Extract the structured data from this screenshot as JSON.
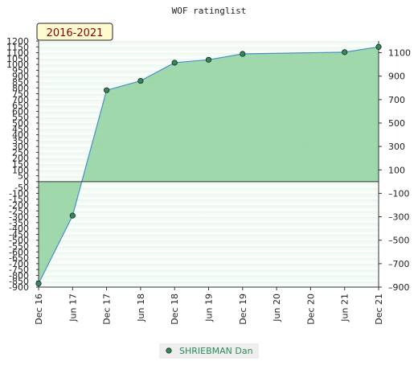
{
  "chart_data": {
    "type": "area",
    "title": "WOF ratinglist",
    "badge": "2016-2021",
    "x_labels": [
      "Dec 16",
      "Jun 17",
      "Dec 17",
      "Jun 18",
      "Dec 18",
      "Jun 19",
      "Dec 19",
      "Jun 20",
      "Dec 20",
      "Jun 21",
      "Dec 21"
    ],
    "series": [
      {
        "name": "SHRIEBMAN Dan",
        "color": "#8fd19e",
        "x": [
          "Dec 16",
          "Jun 17",
          "Dec 17",
          "Jun 18",
          "Dec 18",
          "Jun 19",
          "Dec 19",
          "Dec 20",
          "Jun 21",
          "Dec 21"
        ],
        "values": [
          -870,
          -290,
          780,
          860,
          1015,
          1040,
          1090,
          1100,
          1105,
          1150
        ],
        "markers": [
          true,
          true,
          true,
          true,
          true,
          true,
          true,
          false,
          true,
          true
        ]
      }
    ],
    "y_left_ticks": [
      1200,
      1150,
      1100,
      1050,
      1000,
      950,
      900,
      850,
      800,
      750,
      700,
      650,
      600,
      550,
      500,
      450,
      400,
      350,
      300,
      250,
      200,
      150,
      100,
      50,
      0,
      -50,
      -100,
      -150,
      -200,
      -250,
      -300,
      -350,
      -400,
      -450,
      -500,
      -550,
      -600,
      -650,
      -700,
      -750,
      -800,
      -850,
      -900
    ],
    "y_right_ticks": [
      1100,
      900,
      700,
      500,
      300,
      100,
      -100,
      -300,
      -500,
      -700,
      -900
    ],
    "ylim": [
      -900,
      1200
    ],
    "grid": true,
    "legend_position": "bottom-center"
  }
}
